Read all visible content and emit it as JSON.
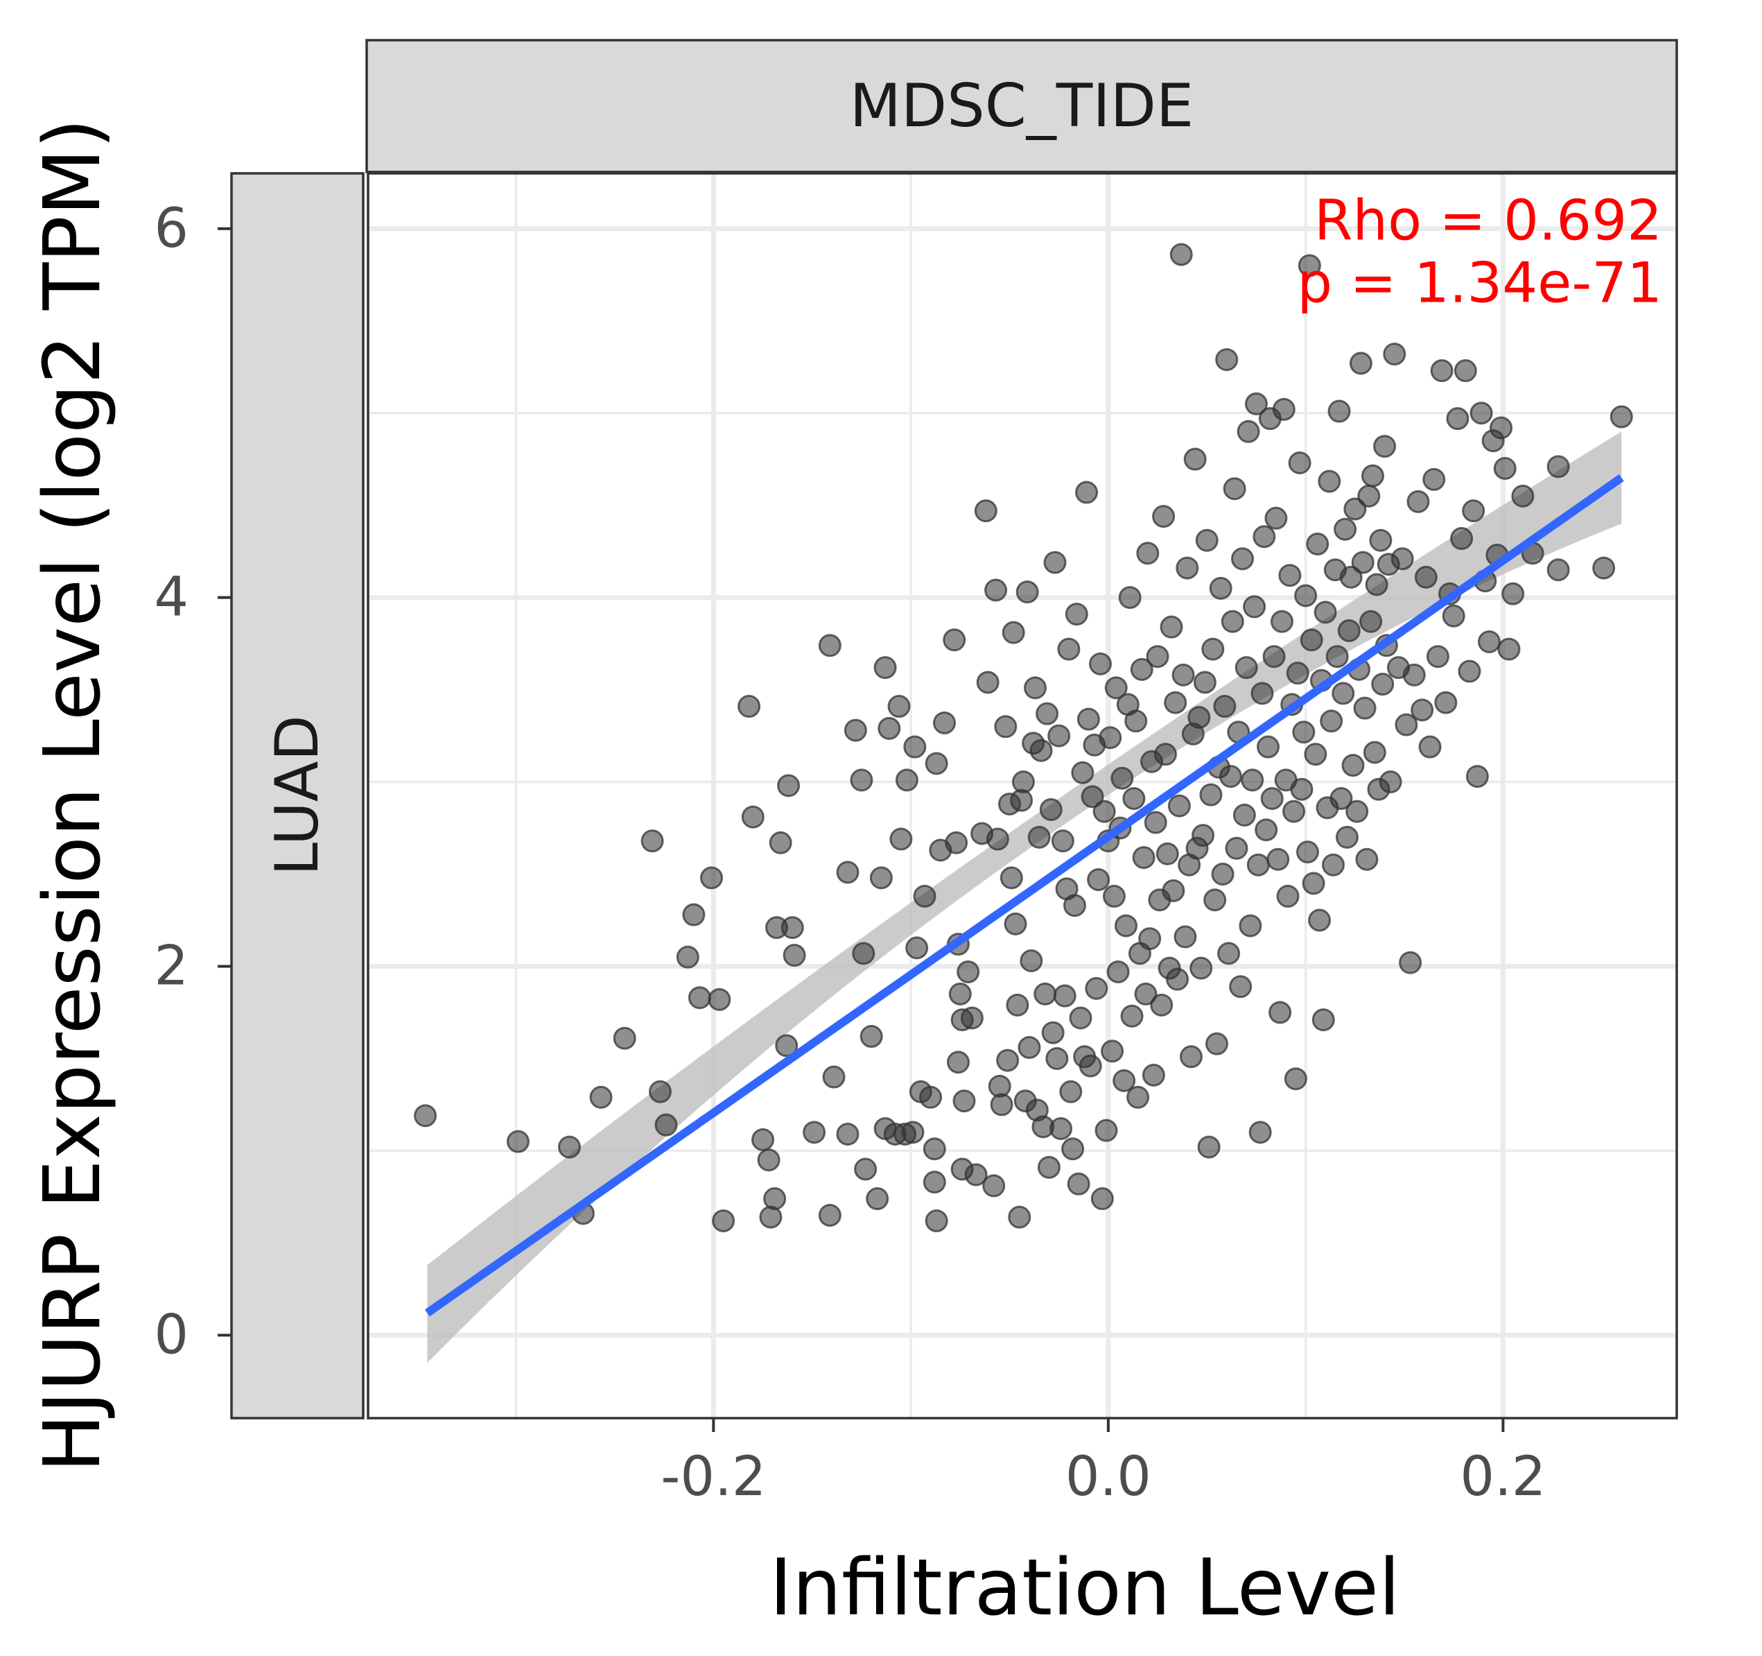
{
  "chart_data": {
    "type": "scatter",
    "facet_column_label": "MDSC_TIDE",
    "facet_row_label": "LUAD",
    "xlabel": "Infiltration Level",
    "ylabel": "HJURP Expression Level (log2 TPM)",
    "xlim": [
      -0.375,
      0.288
    ],
    "ylim": [
      -0.45,
      6.3
    ],
    "x_ticks": [
      -0.2,
      0.0,
      0.2
    ],
    "x_tick_labels": [
      "-0.2",
      "0.0",
      "0.2"
    ],
    "y_ticks": [
      0,
      2,
      4,
      6
    ],
    "y_tick_labels": [
      "0",
      "2",
      "4",
      "6"
    ],
    "grid": true,
    "annotation": {
      "rho_text": "Rho = 0.692",
      "p_text": "p = 1.34e-71",
      "color": "#ff0000"
    },
    "point_color": "#333333",
    "fit": {
      "color": "#3366ff",
      "x_range": [
        -0.345,
        0.26
      ],
      "y_start": 0.12,
      "y_end": 4.65,
      "ci_band": {
        "color": "#c8c8c8",
        "start": [
          -0.15,
          0.38
        ],
        "mid": [
          2.62,
          2.78
        ],
        "end": [
          4.4,
          4.9
        ]
      }
    },
    "points": [
      [
        -0.346,
        1.19
      ],
      [
        -0.299,
        1.05
      ],
      [
        -0.273,
        1.02
      ],
      [
        -0.266,
        0.66
      ],
      [
        -0.257,
        1.29
      ],
      [
        -0.245,
        1.61
      ],
      [
        -0.231,
        2.68
      ],
      [
        -0.227,
        1.32
      ],
      [
        -0.224,
        1.14
      ],
      [
        -0.213,
        2.05
      ],
      [
        -0.21,
        2.28
      ],
      [
        -0.207,
        1.83
      ],
      [
        -0.201,
        2.48
      ],
      [
        -0.197,
        1.82
      ],
      [
        -0.195,
        0.62
      ],
      [
        -0.182,
        3.41
      ],
      [
        -0.18,
        2.81
      ],
      [
        -0.175,
        1.06
      ],
      [
        -0.172,
        0.95
      ],
      [
        -0.171,
        0.64
      ],
      [
        -0.169,
        0.74
      ],
      [
        -0.168,
        2.21
      ],
      [
        -0.166,
        2.67
      ],
      [
        -0.163,
        1.57
      ],
      [
        -0.162,
        2.98
      ],
      [
        -0.16,
        2.21
      ],
      [
        -0.159,
        2.06
      ],
      [
        -0.149,
        1.1
      ],
      [
        -0.141,
        3.74
      ],
      [
        -0.141,
        0.65
      ],
      [
        -0.139,
        1.4
      ],
      [
        -0.132,
        2.51
      ],
      [
        -0.132,
        1.09
      ],
      [
        -0.128,
        3.28
      ],
      [
        -0.125,
        3.01
      ],
      [
        -0.124,
        2.07
      ],
      [
        -0.123,
        0.9
      ],
      [
        -0.12,
        1.62
      ],
      [
        -0.117,
        0.74
      ],
      [
        -0.115,
        2.48
      ],
      [
        -0.113,
        3.62
      ],
      [
        -0.113,
        1.12
      ],
      [
        -0.111,
        3.29
      ],
      [
        -0.108,
        1.09
      ],
      [
        -0.106,
        3.41
      ],
      [
        -0.105,
        2.69
      ],
      [
        -0.103,
        1.09
      ],
      [
        -0.102,
        3.01
      ],
      [
        -0.099,
        1.1
      ],
      [
        -0.098,
        3.19
      ],
      [
        -0.097,
        2.1
      ],
      [
        -0.095,
        1.32
      ],
      [
        -0.093,
        2.38
      ],
      [
        -0.09,
        1.29
      ],
      [
        -0.088,
        1.01
      ],
      [
        -0.088,
        0.83
      ],
      [
        -0.087,
        3.1
      ],
      [
        -0.087,
        0.62
      ],
      [
        -0.085,
        2.63
      ],
      [
        -0.083,
        3.32
      ],
      [
        -0.078,
        3.77
      ],
      [
        -0.077,
        2.67
      ],
      [
        -0.076,
        1.48
      ],
      [
        -0.076,
        2.12
      ],
      [
        -0.075,
        1.85
      ],
      [
        -0.074,
        1.71
      ],
      [
        -0.074,
        0.9
      ],
      [
        -0.073,
        1.27
      ],
      [
        -0.071,
        1.97
      ],
      [
        -0.069,
        1.72
      ],
      [
        -0.067,
        0.87
      ],
      [
        -0.064,
        2.72
      ],
      [
        -0.062,
        4.47
      ],
      [
        -0.061,
        3.54
      ],
      [
        -0.058,
        0.81
      ],
      [
        -0.057,
        4.04
      ],
      [
        -0.056,
        2.69
      ],
      [
        -0.055,
        1.35
      ],
      [
        -0.054,
        1.25
      ],
      [
        -0.052,
        3.3
      ],
      [
        -0.051,
        1.49
      ],
      [
        -0.05,
        2.88
      ],
      [
        -0.049,
        2.48
      ],
      [
        -0.048,
        3.81
      ],
      [
        -0.047,
        2.23
      ],
      [
        -0.046,
        1.79
      ],
      [
        -0.045,
        0.64
      ],
      [
        -0.044,
        2.9
      ],
      [
        -0.043,
        3.0
      ],
      [
        -0.042,
        1.27
      ],
      [
        -0.041,
        4.03
      ],
      [
        -0.04,
        1.56
      ],
      [
        -0.039,
        2.03
      ],
      [
        -0.038,
        3.21
      ],
      [
        -0.037,
        3.51
      ],
      [
        -0.036,
        1.22
      ],
      [
        -0.035,
        2.7
      ],
      [
        -0.034,
        3.17
      ],
      [
        -0.033,
        1.13
      ],
      [
        -0.032,
        1.85
      ],
      [
        -0.031,
        3.37
      ],
      [
        -0.03,
        0.91
      ],
      [
        -0.029,
        2.85
      ],
      [
        -0.028,
        1.64
      ],
      [
        -0.027,
        4.19
      ],
      [
        -0.026,
        1.5
      ],
      [
        -0.025,
        3.25
      ],
      [
        -0.024,
        1.12
      ],
      [
        -0.023,
        2.68
      ],
      [
        -0.022,
        1.84
      ],
      [
        -0.021,
        2.42
      ],
      [
        -0.02,
        3.72
      ],
      [
        -0.019,
        1.32
      ],
      [
        -0.018,
        1.01
      ],
      [
        -0.017,
        2.33
      ],
      [
        -0.016,
        3.91
      ],
      [
        -0.015,
        0.82
      ],
      [
        -0.014,
        1.72
      ],
      [
        -0.013,
        3.05
      ],
      [
        -0.012,
        1.51
      ],
      [
        -0.011,
        4.57
      ],
      [
        -0.01,
        3.34
      ],
      [
        -0.009,
        1.46
      ],
      [
        -0.008,
        2.92
      ],
      [
        -0.007,
        3.2
      ],
      [
        -0.006,
        1.88
      ],
      [
        -0.005,
        2.47
      ],
      [
        -0.004,
        3.64
      ],
      [
        -0.003,
        0.74
      ],
      [
        -0.002,
        2.84
      ],
      [
        -0.001,
        1.11
      ],
      [
        0.0,
        2.68
      ],
      [
        0.001,
        3.24
      ],
      [
        0.002,
        1.54
      ],
      [
        0.003,
        2.38
      ],
      [
        0.004,
        3.51
      ],
      [
        0.005,
        1.97
      ],
      [
        0.006,
        2.75
      ],
      [
        0.007,
        3.02
      ],
      [
        0.008,
        1.38
      ],
      [
        0.009,
        2.22
      ],
      [
        0.01,
        3.42
      ],
      [
        0.011,
        4.0
      ],
      [
        0.012,
        1.73
      ],
      [
        0.013,
        2.91
      ],
      [
        0.014,
        3.33
      ],
      [
        0.015,
        1.29
      ],
      [
        0.016,
        2.07
      ],
      [
        0.017,
        3.61
      ],
      [
        0.018,
        2.59
      ],
      [
        0.019,
        1.85
      ],
      [
        0.02,
        4.24
      ],
      [
        0.021,
        2.15
      ],
      [
        0.022,
        3.11
      ],
      [
        0.023,
        1.41
      ],
      [
        0.024,
        2.78
      ],
      [
        0.025,
        3.68
      ],
      [
        0.026,
        2.36
      ],
      [
        0.027,
        1.79
      ],
      [
        0.028,
        4.44
      ],
      [
        0.029,
        3.15
      ],
      [
        0.03,
        2.61
      ],
      [
        0.031,
        1.99
      ],
      [
        0.032,
        3.84
      ],
      [
        0.033,
        2.41
      ],
      [
        0.034,
        3.43
      ],
      [
        0.035,
        1.93
      ],
      [
        0.036,
        2.87
      ],
      [
        0.037,
        5.86
      ],
      [
        0.038,
        3.58
      ],
      [
        0.039,
        2.16
      ],
      [
        0.04,
        4.16
      ],
      [
        0.041,
        2.55
      ],
      [
        0.042,
        1.51
      ],
      [
        0.043,
        3.26
      ],
      [
        0.044,
        4.75
      ],
      [
        0.045,
        2.64
      ],
      [
        0.046,
        3.35
      ],
      [
        0.047,
        1.99
      ],
      [
        0.048,
        2.71
      ],
      [
        0.049,
        3.54
      ],
      [
        0.05,
        4.31
      ],
      [
        0.051,
        1.02
      ],
      [
        0.052,
        2.93
      ],
      [
        0.053,
        3.72
      ],
      [
        0.054,
        2.36
      ],
      [
        0.055,
        1.58
      ],
      [
        0.056,
        3.08
      ],
      [
        0.057,
        4.05
      ],
      [
        0.058,
        2.5
      ],
      [
        0.059,
        3.41
      ],
      [
        0.06,
        5.29
      ],
      [
        0.061,
        2.07
      ],
      [
        0.062,
        3.03
      ],
      [
        0.063,
        3.87
      ],
      [
        0.064,
        4.59
      ],
      [
        0.065,
        2.64
      ],
      [
        0.066,
        3.27
      ],
      [
        0.067,
        1.89
      ],
      [
        0.068,
        4.21
      ],
      [
        0.069,
        2.82
      ],
      [
        0.07,
        3.62
      ],
      [
        0.071,
        4.9
      ],
      [
        0.072,
        2.22
      ],
      [
        0.073,
        3.01
      ],
      [
        0.074,
        3.95
      ],
      [
        0.075,
        5.05
      ],
      [
        0.076,
        2.55
      ],
      [
        0.077,
        1.1
      ],
      [
        0.078,
        3.48
      ],
      [
        0.079,
        4.33
      ],
      [
        0.08,
        2.74
      ],
      [
        0.081,
        3.19
      ],
      [
        0.082,
        4.97
      ],
      [
        0.083,
        2.91
      ],
      [
        0.084,
        3.68
      ],
      [
        0.085,
        4.43
      ],
      [
        0.086,
        2.58
      ],
      [
        0.087,
        1.75
      ],
      [
        0.088,
        3.87
      ],
      [
        0.089,
        5.02
      ],
      [
        0.09,
        3.01
      ],
      [
        0.091,
        2.38
      ],
      [
        0.092,
        4.12
      ],
      [
        0.093,
        3.42
      ],
      [
        0.094,
        2.84
      ],
      [
        0.095,
        1.39
      ],
      [
        0.096,
        3.59
      ],
      [
        0.097,
        4.73
      ],
      [
        0.098,
        2.96
      ],
      [
        0.099,
        3.27
      ],
      [
        0.1,
        4.01
      ],
      [
        0.101,
        2.62
      ],
      [
        0.102,
        5.8
      ],
      [
        0.103,
        3.77
      ],
      [
        0.104,
        2.45
      ],
      [
        0.105,
        3.15
      ],
      [
        0.106,
        4.29
      ],
      [
        0.107,
        2.25
      ],
      [
        0.108,
        3.55
      ],
      [
        0.109,
        1.71
      ],
      [
        0.11,
        3.92
      ],
      [
        0.111,
        2.86
      ],
      [
        0.112,
        4.63
      ],
      [
        0.113,
        3.33
      ],
      [
        0.114,
        2.55
      ],
      [
        0.115,
        4.15
      ],
      [
        0.116,
        3.68
      ],
      [
        0.117,
        5.01
      ],
      [
        0.118,
        2.91
      ],
      [
        0.119,
        3.48
      ],
      [
        0.12,
        4.37
      ],
      [
        0.121,
        2.7
      ],
      [
        0.122,
        3.82
      ],
      [
        0.123,
        4.11
      ],
      [
        0.124,
        3.09
      ],
      [
        0.125,
        4.48
      ],
      [
        0.126,
        2.84
      ],
      [
        0.127,
        3.61
      ],
      [
        0.128,
        5.27
      ],
      [
        0.129,
        4.19
      ],
      [
        0.13,
        3.4
      ],
      [
        0.131,
        2.58
      ],
      [
        0.132,
        4.55
      ],
      [
        0.133,
        3.87
      ],
      [
        0.134,
        4.66
      ],
      [
        0.135,
        3.16
      ],
      [
        0.136,
        4.07
      ],
      [
        0.137,
        2.96
      ],
      [
        0.138,
        4.31
      ],
      [
        0.139,
        3.53
      ],
      [
        0.14,
        4.82
      ],
      [
        0.141,
        3.74
      ],
      [
        0.142,
        4.18
      ],
      [
        0.143,
        3.0
      ],
      [
        0.145,
        5.32
      ],
      [
        0.147,
        3.62
      ],
      [
        0.149,
        4.21
      ],
      [
        0.151,
        3.31
      ],
      [
        0.153,
        2.02
      ],
      [
        0.155,
        3.58
      ],
      [
        0.157,
        4.52
      ],
      [
        0.159,
        3.39
      ],
      [
        0.161,
        4.11
      ],
      [
        0.163,
        3.19
      ],
      [
        0.165,
        4.64
      ],
      [
        0.167,
        3.68
      ],
      [
        0.169,
        5.23
      ],
      [
        0.171,
        3.43
      ],
      [
        0.173,
        4.02
      ],
      [
        0.175,
        3.9
      ],
      [
        0.177,
        4.97
      ],
      [
        0.179,
        4.32
      ],
      [
        0.181,
        5.23
      ],
      [
        0.183,
        3.6
      ],
      [
        0.185,
        4.47
      ],
      [
        0.187,
        3.03
      ],
      [
        0.189,
        5.0
      ],
      [
        0.191,
        4.09
      ],
      [
        0.193,
        3.76
      ],
      [
        0.195,
        4.85
      ],
      [
        0.197,
        4.23
      ],
      [
        0.199,
        4.92
      ],
      [
        0.201,
        4.7
      ],
      [
        0.203,
        3.72
      ],
      [
        0.205,
        4.02
      ],
      [
        0.21,
        4.55
      ],
      [
        0.215,
        4.24
      ],
      [
        0.228,
        4.15
      ],
      [
        0.228,
        4.71
      ],
      [
        0.251,
        4.16
      ],
      [
        0.26,
        4.98
      ]
    ]
  }
}
